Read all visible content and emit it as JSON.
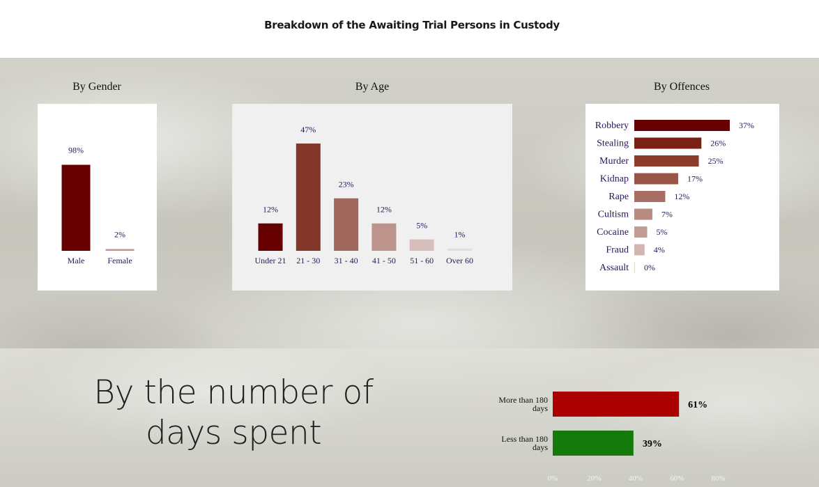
{
  "page_title": "Breakdown of the Awaiting Trial Persons in Custody",
  "sections": {
    "gender_title": "By Gender",
    "age_title": "By Age",
    "offences_title": "By Offences",
    "days_title_line1": "By the number of",
    "days_title_line2": "days spent"
  },
  "colors": {
    "label_text": "#2a1659",
    "male": "#660000",
    "female": "#c8948a",
    "age": [
      "#660000",
      "#82372a",
      "#a0685c",
      "#bc948b",
      "#d6bfba",
      "#e6dcda"
    ],
    "offences": [
      "#660000",
      "#7a2113",
      "#8b3c2d",
      "#9a5446",
      "#a86e63",
      "#b88b82",
      "#c29c95",
      "#d3b4af",
      "#e8d6d3"
    ],
    "more_than_180": "#aa0000",
    "less_than_180": "#147a0b"
  },
  "chart_data": [
    {
      "type": "bar",
      "title": "By Gender",
      "categories": [
        "Male",
        "Female"
      ],
      "values": [
        98,
        2
      ],
      "value_labels": [
        "98%",
        "2%"
      ],
      "ylim": [
        0,
        100
      ]
    },
    {
      "type": "bar",
      "title": "By Age",
      "categories": [
        "Under 21",
        "21 - 30",
        "31 - 40",
        "41 - 50",
        "51 - 60",
        "Over 60"
      ],
      "values": [
        12,
        47,
        23,
        12,
        5,
        1
      ],
      "value_labels": [
        "12%",
        "47%",
        "23%",
        "12%",
        "5%",
        "1%"
      ],
      "ylim": [
        0,
        47
      ]
    },
    {
      "type": "bar",
      "orientation": "horizontal",
      "title": "By Offences",
      "categories": [
        "Robbery",
        "Stealing",
        "Murder",
        "Kidnap",
        "Rape",
        "Cultism",
        "Cocaine",
        "Fraud",
        "Assault"
      ],
      "values": [
        37,
        26,
        25,
        17,
        12,
        7,
        5,
        4,
        0
      ],
      "value_labels": [
        "37%",
        "26%",
        "25%",
        "17%",
        "12%",
        "7%",
        "5%",
        "4%",
        "0%"
      ],
      "xlim": [
        0,
        37
      ]
    },
    {
      "type": "bar",
      "orientation": "horizontal",
      "title": "By the number of days spent",
      "categories": [
        [
          "More than 180",
          "days"
        ],
        [
          "Less than 180",
          "days"
        ]
      ],
      "values": [
        61,
        39
      ],
      "value_labels": [
        "61%",
        "39%"
      ],
      "x_ticks": [
        "0%",
        "20%",
        "40%",
        "60%",
        "80%"
      ],
      "xlim": [
        0,
        80
      ]
    }
  ]
}
